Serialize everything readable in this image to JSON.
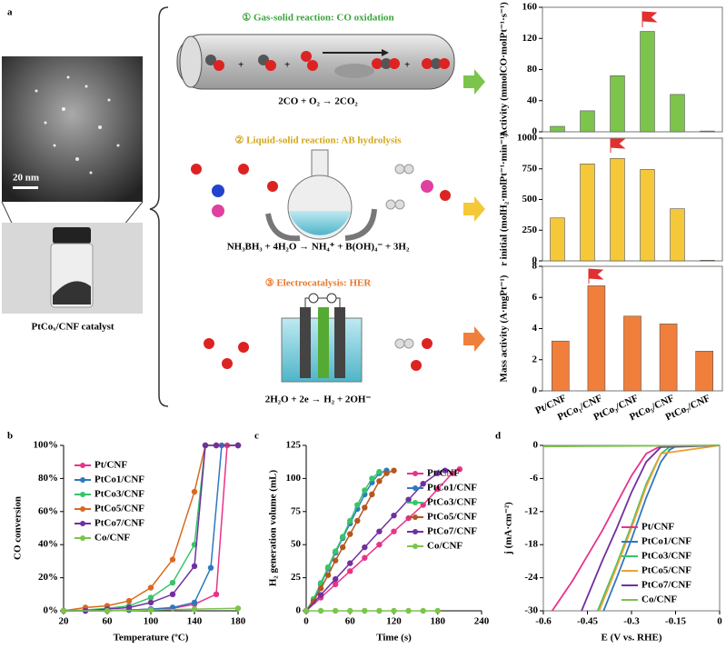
{
  "figure": {
    "panel_labels": [
      "a",
      "b",
      "c",
      "d"
    ],
    "scale_bar": "20 nm",
    "catalyst_label": "PtCoₓ/CNF catalyst",
    "reactions": [
      {
        "title": "① Gas-solid reaction: CO oxidation",
        "equation": "2CO + O₂ → 2CO₂"
      },
      {
        "title": "② Liquid-solid reaction: AB hydrolysis",
        "equation": "NH₃BH₃ + 4H₂O → NH₄⁺ + B(OH)₄⁻ + 3H₂"
      },
      {
        "title": "③ Electrocatalysis: HER",
        "equation": "2H₂O + 2e → H₂ + 2OH⁻"
      }
    ]
  },
  "chart_data": [
    {
      "type": "bar",
      "y_label": "Activity (mmolCO·molPt⁻¹·s⁻¹)",
      "color": "#7cc44c",
      "categories": [
        null,
        null,
        null,
        null,
        null,
        null
      ],
      "values": [
        7,
        27,
        72,
        129,
        48,
        1
      ],
      "ylim": [
        0,
        160
      ],
      "yticks": [
        0,
        40,
        80,
        120,
        160
      ],
      "frame": true
    },
    {
      "type": "bar",
      "y_label": "r initial (molH₂·molPt⁻¹·min⁻¹)",
      "color": "#f5c83a",
      "categories": [
        null,
        null,
        null,
        null,
        null,
        null
      ],
      "values": [
        350,
        790,
        835,
        745,
        425,
        5
      ],
      "ylim": [
        0,
        1000
      ],
      "yticks": [
        0,
        250,
        500,
        750,
        1000
      ],
      "frame": true
    },
    {
      "type": "bar",
      "y_label": "Mass activity (A·mgPt⁻¹)",
      "color": "#f07f3c",
      "categories": [
        "Pt/CNF",
        "PtCo₁/CNF",
        "PtCo₃/CNF",
        "PtCo₅/CNF",
        "PtCo₇/CNF"
      ],
      "values": [
        3.2,
        6.75,
        4.8,
        4.3,
        2.55
      ],
      "ylim": [
        0,
        8
      ],
      "yticks": [
        0,
        2,
        4,
        6,
        8
      ],
      "frame": true
    },
    {
      "type": "line",
      "x_label": "Temperature (ºC)",
      "y_label": "CO conversion",
      "markers": true,
      "legend": "top-left",
      "xlim": [
        20,
        180
      ],
      "xticks": [
        20,
        60,
        100,
        140,
        180
      ],
      "ylim": [
        0,
        100
      ],
      "yticks": [
        {
          "value": 0,
          "label": "0%"
        },
        {
          "value": 20,
          "label": "20%"
        },
        {
          "value": 40,
          "label": "40%"
        },
        {
          "value": 60,
          "label": "60%"
        },
        {
          "value": 80,
          "label": "80%"
        },
        {
          "value": 100,
          "label": "100%"
        }
      ],
      "series": [
        {
          "name": "Pt/CNF",
          "color": "#e8338a",
          "x": [
            20,
            40,
            60,
            80,
            100,
            120,
            140,
            160,
            170,
            180
          ],
          "values": [
            0,
            0,
            0,
            0.5,
            1,
            1.5,
            4,
            10,
            100,
            100
          ]
        },
        {
          "name": "PtCo1/CNF",
          "color": "#2e78c0",
          "x": [
            20,
            40,
            60,
            80,
            100,
            120,
            140,
            155,
            165,
            180
          ],
          "values": [
            0,
            0,
            0,
            0.5,
            1,
            2,
            5,
            26,
            100,
            100
          ]
        },
        {
          "name": "PtCo3/CNF",
          "color": "#39c46a",
          "x": [
            20,
            40,
            60,
            80,
            100,
            120,
            140,
            150,
            160,
            180
          ],
          "values": [
            0,
            0.5,
            1.5,
            3,
            8,
            17,
            40,
            100,
            100,
            100
          ]
        },
        {
          "name": "PtCo5/CNF",
          "color": "#d9691f",
          "x": [
            20,
            40,
            60,
            80,
            100,
            120,
            140,
            150,
            160,
            180
          ],
          "values": [
            0,
            2,
            3,
            6,
            14,
            31,
            72,
            100,
            100,
            100
          ]
        },
        {
          "name": "PtCo7/CNF",
          "color": "#7030a0",
          "x": [
            20,
            40,
            60,
            80,
            100,
            120,
            140,
            150,
            160,
            180
          ],
          "values": [
            0,
            0,
            1,
            2,
            5,
            10,
            27,
            100,
            100,
            100
          ]
        },
        {
          "name": "Co/CNF",
          "color": "#7cc44c",
          "x": [
            20,
            60,
            100,
            140,
            180
          ],
          "values": [
            0,
            0,
            0.5,
            1,
            1.5
          ]
        }
      ]
    },
    {
      "type": "line",
      "x_label": "Time (s)",
      "y_label": "H₂ generation volume (mL)",
      "markers": true,
      "legend": "center-right",
      "xlim": [
        0,
        240
      ],
      "xticks": [
        0,
        60,
        120,
        180,
        240
      ],
      "ylim": [
        0,
        125
      ],
      "yticks": [
        0,
        25,
        50,
        75,
        100,
        125
      ],
      "series": [
        {
          "name": "Pt/CNF",
          "color": "#e8338a",
          "x": [
            0,
            20,
            40,
            60,
            80,
            100,
            120,
            140,
            160,
            180,
            200,
            210
          ],
          "values": [
            0,
            10,
            20,
            30,
            40,
            50,
            60,
            70,
            80,
            92,
            104,
            107
          ]
        },
        {
          "name": "PtCo1/CNF",
          "color": "#2e78c0",
          "x": [
            0,
            10,
            20,
            30,
            40,
            50,
            60,
            70,
            80,
            90,
            100,
            110
          ],
          "values": [
            0,
            8,
            20,
            32,
            44,
            55,
            66,
            77,
            88,
            97,
            104,
            106
          ]
        },
        {
          "name": "PtCo3/CNF",
          "color": "#39c46a",
          "x": [
            0,
            10,
            20,
            30,
            40,
            50,
            60,
            70,
            80,
            90,
            100
          ],
          "values": [
            0,
            9,
            21,
            33,
            45,
            56,
            68,
            80,
            91,
            100,
            105
          ]
        },
        {
          "name": "PtCo5/CNF",
          "color": "#b5561c",
          "x": [
            0,
            10,
            20,
            30,
            40,
            50,
            60,
            70,
            80,
            90,
            100,
            110,
            120
          ],
          "values": [
            0,
            7,
            17,
            27,
            38,
            48,
            58,
            68,
            78,
            88,
            98,
            104,
            106
          ]
        },
        {
          "name": "PtCo7/CNF",
          "color": "#7030a0",
          "x": [
            0,
            20,
            40,
            60,
            80,
            100,
            120,
            140,
            160,
            180,
            190
          ],
          "values": [
            0,
            12,
            24,
            36,
            48,
            60,
            72,
            84,
            96,
            104,
            106
          ]
        },
        {
          "name": "Co/CNF",
          "color": "#7cc44c",
          "x": [
            0,
            20,
            40,
            60,
            80,
            100,
            120,
            140,
            160,
            180
          ],
          "values": [
            0,
            0,
            0,
            0,
            0,
            0,
            0,
            0,
            0,
            0
          ]
        }
      ]
    },
    {
      "type": "line",
      "x_label": "E (V vs. RHE)",
      "y_label": "j (mA·cm⁻²)",
      "markers": false,
      "legend": "bottom-right",
      "frame": true,
      "xlim": [
        -0.6,
        0
      ],
      "xticks": [
        -0.6,
        -0.45,
        -0.3,
        -0.15,
        0
      ],
      "ylim": [
        -30,
        0
      ],
      "yticks": [
        -30,
        -24,
        -18,
        -12,
        -6,
        0
      ],
      "series": [
        {
          "name": "Pt/CNF",
          "color": "#e8338a",
          "x": [
            -0.57,
            -0.5,
            -0.45,
            -0.4,
            -0.35,
            -0.3,
            -0.25,
            -0.2,
            0
          ],
          "values": [
            -30,
            -24.5,
            -20,
            -15.5,
            -10.5,
            -5.5,
            -1.5,
            -0.1,
            0
          ]
        },
        {
          "name": "PtCo1/CNF",
          "color": "#2e78c0",
          "x": [
            -0.395,
            -0.35,
            -0.3,
            -0.25,
            -0.2,
            -0.17,
            -0.15,
            0
          ],
          "values": [
            -30,
            -24,
            -17,
            -9.5,
            -3,
            -0.8,
            -0.2,
            0
          ]
        },
        {
          "name": "PtCo3/CNF",
          "color": "#39c46a",
          "x": [
            -0.415,
            -0.35,
            -0.3,
            -0.25,
            -0.2,
            -0.17,
            0
          ],
          "values": [
            -30,
            -21.5,
            -14.5,
            -7,
            -1.5,
            -0.3,
            0
          ]
        },
        {
          "name": "PtCo5/CNF",
          "color": "#f0a030",
          "x": [
            -0.41,
            -0.35,
            -0.3,
            -0.25,
            -0.2,
            0
          ],
          "values": [
            -30,
            -22,
            -15,
            -7.5,
            -1.5,
            0
          ]
        },
        {
          "name": "PtCo7/CNF",
          "color": "#7030a0",
          "x": [
            -0.47,
            -0.4,
            -0.35,
            -0.3,
            -0.25,
            -0.2,
            0
          ],
          "values": [
            -30,
            -21,
            -15,
            -8.5,
            -3,
            -0.3,
            0
          ]
        },
        {
          "name": "Co/CNF",
          "color": "#7cc44c",
          "x": [
            -0.6,
            0
          ],
          "values": [
            -0.2,
            0
          ]
        }
      ]
    }
  ]
}
